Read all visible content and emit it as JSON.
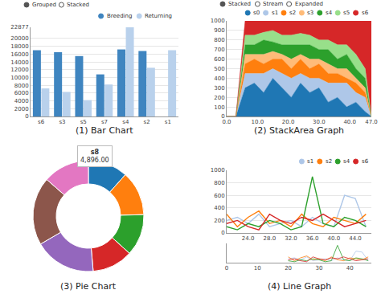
{
  "chart_data": [
    {
      "type": "bar",
      "title": "(1) Bar Chart",
      "annotations": [
        "Grouped",
        "Stacked"
      ],
      "categories": [
        "s6",
        "s3",
        "s5",
        "s7",
        "s4",
        "s2",
        "s1"
      ],
      "series": [
        {
          "name": "Breeding",
          "color": "#3f85c0",
          "values": [
            17000,
            16500,
            15500,
            10800,
            17200,
            16800,
            null
          ]
        },
        {
          "name": "Returning",
          "color": "#b9d1ec",
          "values": [
            7200,
            6300,
            4200,
            8200,
            22877,
            12500,
            17000
          ]
        }
      ],
      "ylim": [
        0,
        22877
      ],
      "yticks": [
        0,
        2000,
        4000,
        6000,
        8000,
        10000,
        12000,
        14000,
        16000,
        18000,
        20000,
        22877
      ],
      "grid": true,
      "legend": "top-right",
      "stacked": false
    },
    {
      "type": "area",
      "title": "(2) StackArea Graph",
      "annotations": [
        "Stacked",
        "Stream",
        "Expanded"
      ],
      "x": [
        0,
        3,
        6,
        9,
        12,
        15,
        18,
        21,
        24,
        27,
        30,
        33,
        36,
        39,
        42,
        45,
        47
      ],
      "series": [
        {
          "name": "s0",
          "color": "#1f77b4",
          "values": [
            0,
            0,
            300,
            350,
            250,
            400,
            300,
            200,
            350,
            250,
            300,
            150,
            200,
            100,
            150,
            50,
            0
          ]
        },
        {
          "name": "s1",
          "color": "#aec7e8",
          "values": [
            0,
            0,
            150,
            100,
            200,
            100,
            150,
            200,
            100,
            150,
            100,
            200,
            150,
            250,
            100,
            150,
            0
          ]
        },
        {
          "name": "s2",
          "color": "#ff7f0e",
          "values": [
            0,
            0,
            100,
            150,
            100,
            100,
            150,
            100,
            150,
            100,
            150,
            100,
            100,
            50,
            100,
            50,
            0
          ]
        },
        {
          "name": "s3",
          "color": "#ffbb78",
          "values": [
            0,
            0,
            100,
            50,
            100,
            80,
            50,
            100,
            50,
            100,
            50,
            100,
            50,
            100,
            50,
            50,
            0
          ]
        },
        {
          "name": "s4",
          "color": "#2ca02c",
          "values": [
            0,
            0,
            100,
            100,
            150,
            100,
            100,
            150,
            100,
            150,
            100,
            150,
            100,
            150,
            100,
            100,
            0
          ]
        },
        {
          "name": "s5",
          "color": "#98df8a",
          "values": [
            0,
            0,
            100,
            100,
            80,
            120,
            100,
            100,
            120,
            100,
            100,
            100,
            150,
            100,
            150,
            100,
            0
          ]
        },
        {
          "name": "s6",
          "color": "#d62728",
          "values": [
            0,
            0,
            150,
            150,
            120,
            100,
            150,
            150,
            130,
            150,
            200,
            200,
            250,
            250,
            350,
            500,
            1000
          ]
        }
      ],
      "xlim": [
        0,
        47
      ],
      "xticks": [
        {
          "value": 0,
          "label": "0.0"
        },
        {
          "value": 10,
          "label": "10.0"
        },
        {
          "value": 20,
          "label": "20.0"
        },
        {
          "value": 30,
          "label": "30.0"
        },
        {
          "value": 40,
          "label": "40.0"
        },
        {
          "value": 47,
          "label": "47.0"
        }
      ],
      "ylim": [
        0,
        1000
      ],
      "yticks": [
        0,
        100,
        200,
        300,
        400,
        500,
        600,
        700,
        800,
        900,
        1000
      ],
      "stacked": true,
      "grid": true,
      "legend": "top-right"
    },
    {
      "type": "pie",
      "title": "(3) Pie Chart",
      "categories": [
        null,
        null,
        null,
        null,
        null,
        null,
        "s8"
      ],
      "values": [
        4200,
        4700,
        4400,
        4300,
        6500,
        7200,
        4896
      ],
      "value_labels": [
        null,
        null,
        null,
        null,
        null,
        null,
        "4,896.00"
      ],
      "colors": [
        "#1f77b4",
        "#ff7f0e",
        "#2ca02c",
        "#d62728",
        "#9467bd",
        "#8c564b",
        "#e377c2"
      ]
    },
    {
      "type": "line",
      "title": "(4) Line Graph",
      "x": [
        20,
        22,
        24,
        26,
        28,
        30,
        32,
        34,
        36,
        38,
        40,
        42,
        44,
        46
      ],
      "series": [
        {
          "name": "s1",
          "color": "#aec7e8",
          "values": [
            200,
            250,
            150,
            300,
            100,
            150,
            200,
            100,
            250,
            150,
            100,
            600,
            550,
            100
          ]
        },
        {
          "name": "s2",
          "color": "#ff7f0e",
          "values": [
            300,
            100,
            250,
            350,
            150,
            200,
            100,
            300,
            150,
            100,
            250,
            200,
            150,
            300
          ]
        },
        {
          "name": "s4",
          "color": "#2ca02c",
          "values": [
            100,
            50,
            150,
            100,
            200,
            150,
            50,
            100,
            900,
            150,
            100,
            250,
            200,
            100
          ]
        },
        {
          "name": "s6",
          "color": "#d62728",
          "values": [
            150,
            200,
            100,
            50,
            300,
            200,
            150,
            250,
            200,
            300,
            200,
            100,
            150,
            200
          ]
        }
      ],
      "xlim": [
        20,
        47
      ],
      "xticks": [
        {
          "value": 24,
          "label": "24.0"
        },
        {
          "value": 28,
          "label": "28.0"
        },
        {
          "value": 32,
          "label": "32.0"
        },
        {
          "value": 36,
          "label": "36.0"
        },
        {
          "value": 40,
          "label": "40.0"
        },
        {
          "value": 44,
          "label": "44.0"
        }
      ],
      "ylim": [
        0,
        1000
      ],
      "yticks": [
        0,
        200,
        400,
        600,
        800,
        1000
      ],
      "grid": true,
      "legend": "top-right"
    },
    {
      "type": "line",
      "x": [
        20,
        22,
        24,
        26,
        28,
        30,
        32,
        34,
        36,
        38,
        40,
        42,
        44,
        46
      ],
      "series": [
        {
          "name": "s1",
          "color": "#aec7e8",
          "values": [
            200,
            250,
            150,
            300,
            100,
            150,
            200,
            100,
            250,
            150,
            100,
            600,
            550,
            100
          ]
        },
        {
          "name": "s2",
          "color": "#ff7f0e",
          "values": [
            300,
            100,
            250,
            350,
            150,
            200,
            100,
            300,
            150,
            100,
            250,
            200,
            150,
            300
          ]
        },
        {
          "name": "s4",
          "color": "#2ca02c",
          "values": [
            100,
            50,
            150,
            100,
            200,
            150,
            50,
            100,
            900,
            150,
            100,
            250,
            200,
            100
          ]
        },
        {
          "name": "s6",
          "color": "#d62728",
          "values": [
            150,
            200,
            100,
            50,
            300,
            200,
            150,
            250,
            200,
            300,
            200,
            100,
            150,
            200
          ]
        }
      ],
      "xlim": [
        0,
        47
      ],
      "xticks": [
        0,
        10,
        20,
        30,
        40
      ],
      "ylim": [
        0,
        1000
      ],
      "tick_labels": "x",
      "grid": false
    }
  ]
}
